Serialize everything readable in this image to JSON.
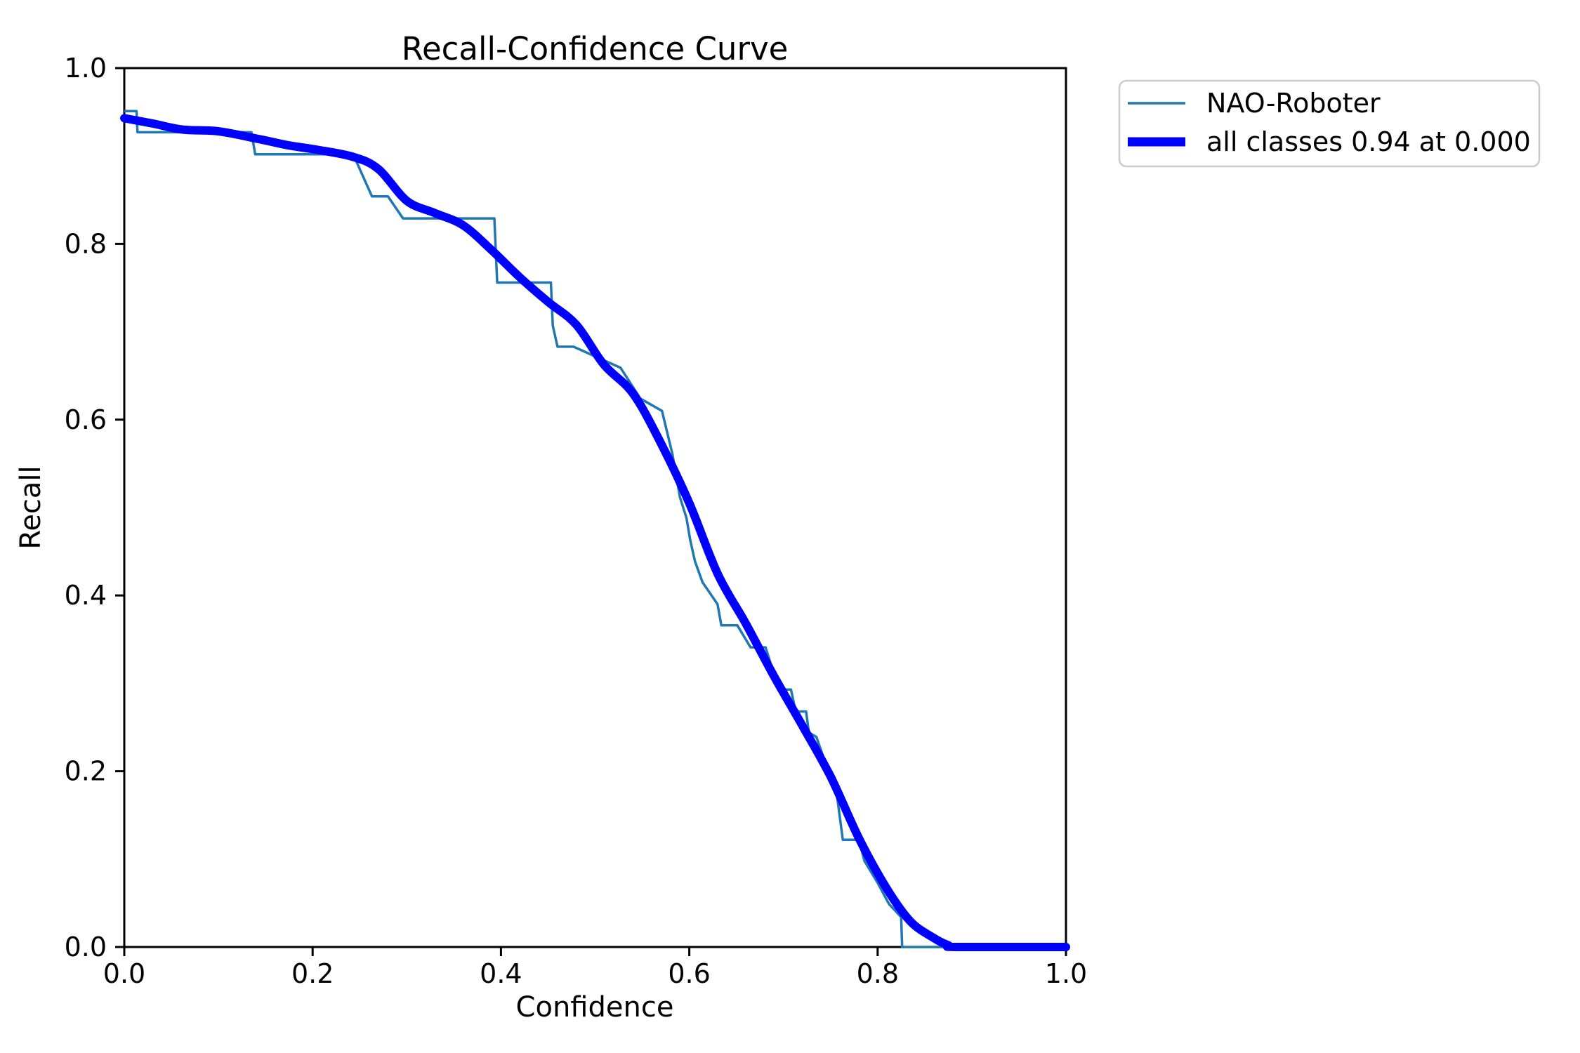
{
  "window": {
    "background_color": "#ffffff"
  },
  "chart_data": {
    "type": "line",
    "title": "Recall-Confidence Curve",
    "xlabel": "Confidence",
    "ylabel": "Recall",
    "xlim": [
      0.0,
      1.0
    ],
    "ylim": [
      0.0,
      1.0
    ],
    "grid": false,
    "axis_color": "#000000",
    "xtick_values": [
      0.0,
      0.2,
      0.4,
      0.6,
      0.8,
      1.0
    ],
    "xtick_labels": [
      "0.0",
      "0.2",
      "0.4",
      "0.6",
      "0.8",
      "1.0"
    ],
    "ytick_values": [
      0.0,
      0.2,
      0.4,
      0.6,
      0.8,
      1.0
    ],
    "ytick_labels": [
      "0.0",
      "0.2",
      "0.4",
      "0.6",
      "0.8",
      "1.0"
    ],
    "legend": {
      "position": "upper-right-outside",
      "border_color": "#cccccc",
      "background_color": "#ffffff"
    },
    "series": [
      {
        "name": "NAO-Roboter",
        "color": "#1f77b4",
        "style": "thin-step",
        "points": [
          [
            0.0,
            0.951
          ],
          [
            0.013,
            0.951
          ],
          [
            0.014,
            0.927
          ],
          [
            0.135,
            0.927
          ],
          [
            0.139,
            0.902
          ],
          [
            0.243,
            0.902
          ],
          [
            0.263,
            0.854
          ],
          [
            0.28,
            0.854
          ],
          [
            0.296,
            0.829
          ],
          [
            0.393,
            0.829
          ],
          [
            0.396,
            0.756
          ],
          [
            0.453,
            0.756
          ],
          [
            0.455,
            0.707
          ],
          [
            0.46,
            0.683
          ],
          [
            0.477,
            0.683
          ],
          [
            0.527,
            0.659
          ],
          [
            0.548,
            0.624
          ],
          [
            0.571,
            0.61
          ],
          [
            0.582,
            0.561
          ],
          [
            0.59,
            0.512
          ],
          [
            0.597,
            0.488
          ],
          [
            0.601,
            0.463
          ],
          [
            0.606,
            0.439
          ],
          [
            0.614,
            0.415
          ],
          [
            0.63,
            0.39
          ],
          [
            0.634,
            0.366
          ],
          [
            0.651,
            0.366
          ],
          [
            0.665,
            0.341
          ],
          [
            0.681,
            0.341
          ],
          [
            0.688,
            0.317
          ],
          [
            0.698,
            0.293
          ],
          [
            0.708,
            0.293
          ],
          [
            0.713,
            0.268
          ],
          [
            0.724,
            0.268
          ],
          [
            0.727,
            0.244
          ],
          [
            0.735,
            0.239
          ],
          [
            0.757,
            0.171
          ],
          [
            0.763,
            0.122
          ],
          [
            0.78,
            0.122
          ],
          [
            0.786,
            0.098
          ],
          [
            0.8,
            0.073
          ],
          [
            0.812,
            0.049
          ],
          [
            0.825,
            0.034
          ],
          [
            0.826,
            0.0
          ],
          [
            1.0,
            0.0
          ]
        ]
      },
      {
        "name": "all classes 0.94 at 0.000",
        "color": "#0000ff",
        "style": "thick-smooth",
        "points": [
          [
            0.0,
            0.943
          ],
          [
            0.03,
            0.937
          ],
          [
            0.062,
            0.93
          ],
          [
            0.1,
            0.928
          ],
          [
            0.144,
            0.919
          ],
          [
            0.175,
            0.912
          ],
          [
            0.205,
            0.907
          ],
          [
            0.243,
            0.899
          ],
          [
            0.27,
            0.885
          ],
          [
            0.3,
            0.849
          ],
          [
            0.33,
            0.835
          ],
          [
            0.36,
            0.821
          ],
          [
            0.39,
            0.793
          ],
          [
            0.42,
            0.762
          ],
          [
            0.45,
            0.734
          ],
          [
            0.48,
            0.708
          ],
          [
            0.509,
            0.663
          ],
          [
            0.54,
            0.63
          ],
          [
            0.569,
            0.575
          ],
          [
            0.6,
            0.505
          ],
          [
            0.63,
            0.425
          ],
          [
            0.66,
            0.368
          ],
          [
            0.69,
            0.308
          ],
          [
            0.72,
            0.252
          ],
          [
            0.75,
            0.194
          ],
          [
            0.78,
            0.124
          ],
          [
            0.81,
            0.066
          ],
          [
            0.835,
            0.029
          ],
          [
            0.86,
            0.01
          ],
          [
            0.875,
            0.002
          ],
          [
            0.885,
            0.0
          ],
          [
            1.0,
            0.0
          ]
        ]
      }
    ]
  }
}
